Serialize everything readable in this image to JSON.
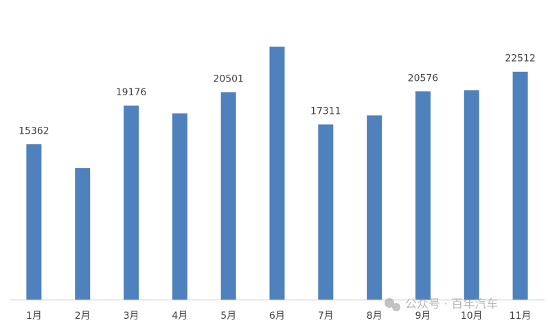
{
  "chart_data": {
    "type": "bar",
    "categories": [
      "1月",
      "2月",
      "3月",
      "4月",
      "5月",
      "6月",
      "7月",
      "8月",
      "9月",
      "10月",
      "11月"
    ],
    "values": [
      15362,
      13000,
      19176,
      18400,
      20501,
      25000,
      17311,
      18200,
      20576,
      20700,
      22512
    ],
    "value_labels": [
      "15362",
      null,
      "19176",
      null,
      "20501",
      null,
      "17311",
      null,
      "20576",
      null,
      "22512"
    ],
    "color": "#4f81bd",
    "watermark": "公众号 · 百年汽车"
  }
}
